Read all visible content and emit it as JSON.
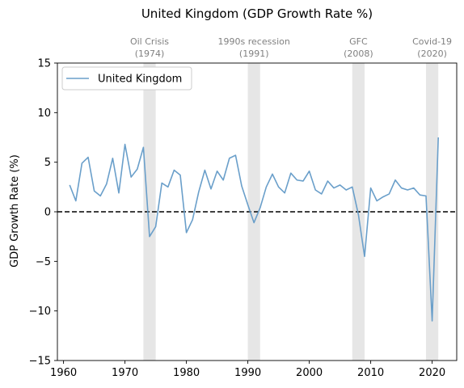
{
  "chart_data": {
    "type": "line",
    "title": "United Kingdom (GDP Growth Rate %)",
    "xlabel": "",
    "ylabel": "GDP Growth Rate (%)",
    "xlim": [
      1959,
      2024
    ],
    "ylim": [
      -15,
      15
    ],
    "xticks": [
      1960,
      1970,
      1980,
      1990,
      2000,
      2010,
      2020
    ],
    "yticks": [
      -15,
      -10,
      -5,
      0,
      5,
      10,
      15
    ],
    "grid": false,
    "legend_position": "top-left",
    "reference_line": {
      "y": 0,
      "style": "dashed",
      "color": "#000000"
    },
    "shaded_regions": [
      {
        "start": 1973,
        "end": 1975,
        "label_line1": "Oil Crisis",
        "label_line2": "(1974)"
      },
      {
        "start": 1990,
        "end": 1992,
        "label_line1": "1990s recession",
        "label_line2": "(1991)"
      },
      {
        "start": 2007,
        "end": 2009,
        "label_line1": "GFC",
        "label_line2": "(2008)"
      },
      {
        "start": 2019,
        "end": 2021,
        "label_line1": "Covid-19",
        "label_line2": "(2020)"
      }
    ],
    "series": [
      {
        "name": "United Kingdom",
        "color": "#6a9fca",
        "x": [
          1961,
          1962,
          1963,
          1964,
          1965,
          1966,
          1967,
          1968,
          1969,
          1970,
          1971,
          1972,
          1973,
          1974,
          1975,
          1976,
          1977,
          1978,
          1979,
          1980,
          1981,
          1982,
          1983,
          1984,
          1985,
          1986,
          1987,
          1988,
          1989,
          1990,
          1991,
          1992,
          1993,
          1994,
          1995,
          1996,
          1997,
          1998,
          1999,
          2000,
          2001,
          2002,
          2003,
          2004,
          2005,
          2006,
          2007,
          2008,
          2009,
          2010,
          2011,
          2012,
          2013,
          2014,
          2015,
          2016,
          2017,
          2018,
          2019,
          2020,
          2021
        ],
        "y": [
          2.7,
          1.1,
          4.9,
          5.5,
          2.1,
          1.6,
          2.8,
          5.4,
          1.9,
          6.8,
          3.5,
          4.3,
          6.5,
          -2.5,
          -1.5,
          2.9,
          2.5,
          4.2,
          3.7,
          -2.1,
          -0.8,
          2.0,
          4.2,
          2.3,
          4.1,
          3.2,
          5.4,
          5.7,
          2.6,
          0.7,
          -1.1,
          0.4,
          2.5,
          3.8,
          2.5,
          1.9,
          3.9,
          3.2,
          3.1,
          4.1,
          2.2,
          1.8,
          3.1,
          2.4,
          2.7,
          2.2,
          2.5,
          -0.3,
          -4.5,
          2.4,
          1.1,
          1.5,
          1.8,
          3.2,
          2.4,
          2.2,
          2.4,
          1.7,
          1.6,
          -11.0,
          7.5
        ]
      }
    ]
  }
}
